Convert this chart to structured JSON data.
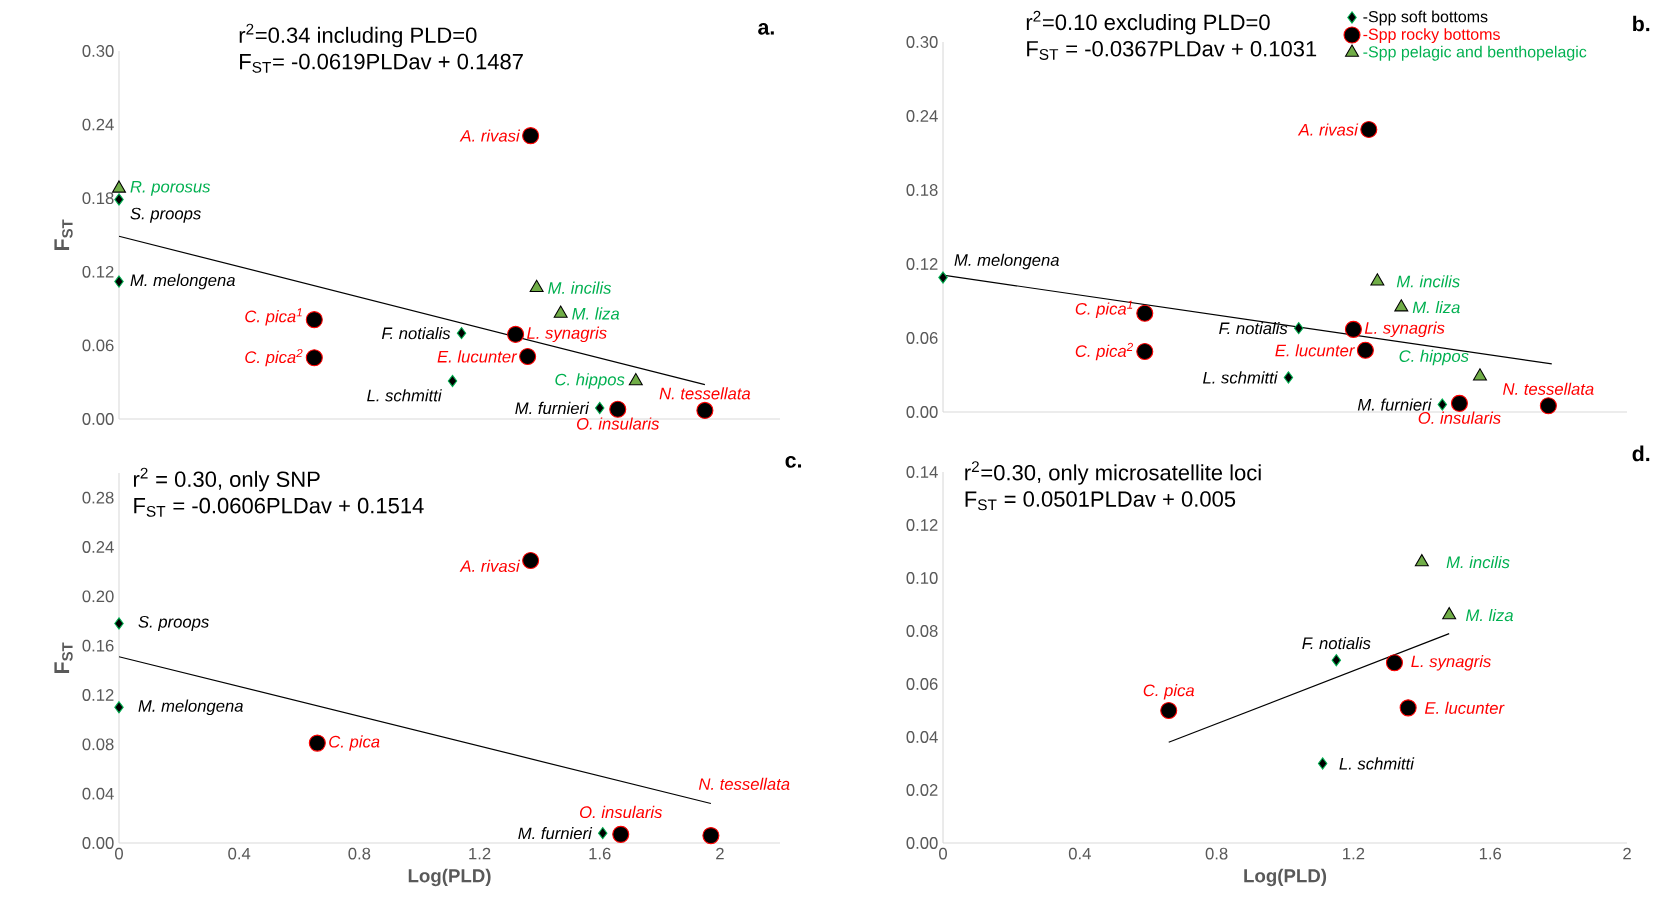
{
  "chart_data": [
    {
      "type": "scatter",
      "title": "a.",
      "ylabel": "F$_{ST}$",
      "annotations": [
        "r$^{2}$=0.34 including PLD=0",
        "F$_{ST}$= -0.0619PLDav + 0.1487",
        {
          "text": "S. proops",
          "x": 0,
          "y": 0.179
        },
        {
          "text": "M. melongena",
          "x": 0,
          "y": 0.112
        },
        {
          "text": "F. notialis",
          "x": 1.14,
          "y": 0.07
        },
        {
          "text": "L. schmitti",
          "x": 1.11,
          "y": 0.031
        },
        {
          "text": "M. furnieri",
          "x": 1.6,
          "y": 0.009
        },
        {
          "text": "C. pica$^{1}$",
          "x": 0.65,
          "y": 0.081
        },
        {
          "text": "C. pica$^{2}$",
          "x": 0.65,
          "y": 0.05
        },
        {
          "text": "A. rivasi",
          "x": 1.37,
          "y": 0.231
        },
        {
          "text": "L. synagris",
          "x": 1.32,
          "y": 0.069
        },
        {
          "text": "E. lucunter",
          "x": 1.36,
          "y": 0.051
        },
        {
          "text": "O. insularis",
          "x": 1.66,
          "y": 0.008
        },
        {
          "text": "N. tessellata",
          "x": 1.95,
          "y": 0.007
        },
        {
          "text": "R. porosus",
          "x": 0,
          "y": 0.188
        },
        {
          "text": "M. incilis",
          "x": 1.39,
          "y": 0.107
        },
        {
          "text": "M. liza",
          "x": 1.47,
          "y": 0.086
        },
        {
          "text": "C. hippos",
          "x": 1.72,
          "y": 0.031
        }
      ],
      "xlim": [
        0,
        2.2
      ],
      "ylim": [
        0,
        0.3
      ],
      "tick_labels": "y",
      "yticks": [
        {
          "value": 0,
          "label": "0.00"
        },
        {
          "value": 0.06,
          "label": "0.06"
        },
        {
          "value": 0.12,
          "label": "0.12"
        },
        {
          "value": 0.18,
          "label": "0.18"
        },
        {
          "value": 0.24,
          "label": "0.24"
        },
        {
          "value": 0.3,
          "label": "0.30"
        }
      ],
      "series": [
        {
          "marker": "diamond",
          "color": "#000000",
          "x": [
            0,
            0,
            1.14,
            1.11,
            1.6
          ],
          "values": [
            0.179,
            0.112,
            0.07,
            0.031,
            0.009
          ]
        },
        {
          "marker": "circle",
          "color": "#000000",
          "x": [
            0.65,
            0.65,
            1.37,
            1.32,
            1.36,
            1.66,
            1.95
          ],
          "values": [
            0.081,
            0.05,
            0.231,
            0.069,
            0.051,
            0.008,
            0.007
          ]
        },
        {
          "marker": "triangle",
          "color": "#70ad47",
          "x": [
            0,
            1.39,
            1.47,
            1.72
          ],
          "values": [
            0.188,
            0.107,
            0.086,
            0.031
          ]
        },
        {
          "type": "line",
          "marker": "none",
          "line_style": "solid",
          "color": "#000000",
          "x": [
            0,
            1.95
          ],
          "values": [
            0.149,
            0.028
          ]
        }
      ]
    },
    {
      "type": "scatter",
      "title": "b.",
      "annotations": [
        "r$^{2}$=0.10 excluding PLD=0",
        "F$_{ST}$ = -0.0367PLDav + 0.1031",
        {
          "text": "M. melongena",
          "x": 0,
          "y": 0.109
        },
        {
          "text": "F. notialis",
          "x": 1.04,
          "y": 0.068
        },
        {
          "text": "L. schmitti",
          "x": 1.01,
          "y": 0.028
        },
        {
          "text": "M. furnieri",
          "x": 1.46,
          "y": 0.006
        },
        {
          "text": "C. pica$^{1}$",
          "x": 0.59,
          "y": 0.08
        },
        {
          "text": "C. pica$^{2}$",
          "x": 0.59,
          "y": 0.049
        },
        {
          "text": "A. rivasi",
          "x": 1.245,
          "y": 0.229
        },
        {
          "text": "L. synagris",
          "x": 1.2,
          "y": 0.067
        },
        {
          "text": "E. lucunter",
          "x": 1.235,
          "y": 0.05
        },
        {
          "text": "O. insularis",
          "x": 1.51,
          "y": 0.007
        },
        {
          "text": "N. tessellata",
          "x": 1.77,
          "y": 0.005
        },
        {
          "text": "M. incilis",
          "x": 1.27,
          "y": 0.106
        },
        {
          "text": "M. liza",
          "x": 1.34,
          "y": 0.085
        },
        {
          "text": "C. hippos",
          "x": 1.57,
          "y": 0.029
        }
      ],
      "xlim": [
        0,
        2
      ],
      "ylim": [
        0,
        0.3
      ],
      "tick_labels": "y",
      "legend": "top right",
      "yticks": [
        {
          "value": 0,
          "label": "0.00"
        },
        {
          "value": 0.06,
          "label": "0.06"
        },
        {
          "value": 0.12,
          "label": "0.12"
        },
        {
          "value": 0.18,
          "label": "0.18"
        },
        {
          "value": 0.24,
          "label": "0.24"
        },
        {
          "value": 0.3,
          "label": "0.30"
        }
      ],
      "series": [
        {
          "name": "-Spp soft bottoms",
          "marker": "diamond",
          "color": "#000000",
          "x": [
            0,
            1.04,
            1.01,
            1.46
          ],
          "values": [
            0.109,
            0.068,
            0.028,
            0.006
          ]
        },
        {
          "name": "-Spp rocky bottoms",
          "marker": "circle",
          "color": "#000000",
          "x": [
            0.59,
            0.59,
            1.245,
            1.2,
            1.235,
            1.51,
            1.77
          ],
          "values": [
            0.08,
            0.049,
            0.229,
            0.067,
            0.05,
            0.007,
            0.005
          ]
        },
        {
          "name": "-Spp pelagic and benthopelagic",
          "marker": "triangle",
          "color": "#70ad47",
          "x": [
            1.27,
            1.34,
            1.57
          ],
          "values": [
            0.106,
            0.085,
            0.029
          ]
        },
        {
          "type": "line",
          "marker": "none",
          "line_style": "solid",
          "color": "#000000",
          "x": [
            0,
            1.78
          ],
          "values": [
            0.111,
            0.039
          ]
        }
      ]
    },
    {
      "type": "scatter",
      "title": "c.",
      "ylabel": "F$_{ST}$",
      "xlabel": "Log(PLD)",
      "annotations": [
        "r$^{2}$ = 0.30, only SNP",
        "F$_{ST}$ = -0.0606PLDav + 0.1514",
        {
          "text": "S. proops",
          "x": 0,
          "y": 0.178
        },
        {
          "text": "M. melongena",
          "x": 0,
          "y": 0.11
        },
        {
          "text": "M. furnieri",
          "x": 1.61,
          "y": 0.008
        },
        {
          "text": "C. pica",
          "x": 0.66,
          "y": 0.081
        },
        {
          "text": "A. rivasi",
          "x": 1.37,
          "y": 0.229
        },
        {
          "text": "O. insularis",
          "x": 1.67,
          "y": 0.007
        },
        {
          "text": "N. tessellata",
          "x": 1.97,
          "y": 0.006
        }
      ],
      "xlim": [
        0,
        2.2
      ],
      "ylim": [
        0,
        0.3
      ],
      "xticks": [
        0,
        0.4,
        0.8,
        1.2,
        1.6,
        2
      ],
      "yticks": [
        {
          "value": 0,
          "label": "0.00"
        },
        {
          "value": 0.04,
          "label": "0.04"
        },
        {
          "value": 0.08,
          "label": "0.08"
        },
        {
          "value": 0.12,
          "label": "0.12"
        },
        {
          "value": 0.16,
          "label": "0.16"
        },
        {
          "value": 0.2,
          "label": "0.20"
        },
        {
          "value": 0.24,
          "label": "0.24"
        },
        {
          "value": 0.28,
          "label": "0.28"
        }
      ],
      "series": [
        {
          "marker": "diamond",
          "color": "#000000",
          "x": [
            0,
            0,
            1.61
          ],
          "values": [
            0.178,
            0.11,
            0.008
          ]
        },
        {
          "marker": "circle",
          "color": "#000000",
          "x": [
            0.66,
            1.37,
            1.67,
            1.97
          ],
          "values": [
            0.081,
            0.229,
            0.007,
            0.006
          ]
        },
        {
          "type": "line",
          "marker": "none",
          "line_style": "solid",
          "color": "#000000",
          "x": [
            0,
            1.97
          ],
          "values": [
            0.151,
            0.032
          ]
        }
      ]
    },
    {
      "type": "scatter",
      "title": "d.",
      "xlabel": "Log(PLD)",
      "annotations": [
        "r$^{2}$=0.30, only microsatellite loci",
        "F$_{ST}$ = 0.0501PLDav + 0.005",
        {
          "text": "F. notialis",
          "x": 1.15,
          "y": 0.069
        },
        {
          "text": "L. schmitti",
          "x": 1.11,
          "y": 0.03
        },
        {
          "text": "C. pica",
          "x": 0.66,
          "y": 0.05
        },
        {
          "text": "L. synagris",
          "x": 1.32,
          "y": 0.068
        },
        {
          "text": "E. lucunter",
          "x": 1.36,
          "y": 0.051
        },
        {
          "text": "M. incilis",
          "x": 1.4,
          "y": 0.106
        },
        {
          "text": "M. liza",
          "x": 1.48,
          "y": 0.086
        }
      ],
      "xlim": [
        0,
        2
      ],
      "ylim": [
        0,
        0.14
      ],
      "xticks": [
        0,
        0.4,
        0.8,
        1.2,
        1.6,
        2
      ],
      "yticks": [
        {
          "value": 0,
          "label": "0.00"
        },
        {
          "value": 0.02,
          "label": "0.02"
        },
        {
          "value": 0.04,
          "label": "0.04"
        },
        {
          "value": 0.06,
          "label": "0.06"
        },
        {
          "value": 0.08,
          "label": "0.08"
        },
        {
          "value": 0.1,
          "label": "0.10"
        },
        {
          "value": 0.12,
          "label": "0.12"
        },
        {
          "value": 0.14,
          "label": "0.14"
        }
      ],
      "series": [
        {
          "marker": "diamond",
          "color": "#000000",
          "x": [
            1.15,
            1.11
          ],
          "values": [
            0.069,
            0.03
          ]
        },
        {
          "marker": "circle",
          "color": "#000000",
          "x": [
            0.66,
            1.32,
            1.36
          ],
          "values": [
            0.05,
            0.068,
            0.051
          ]
        },
        {
          "marker": "triangle",
          "color": "#70ad47",
          "x": [
            1.4,
            1.48
          ],
          "values": [
            0.106,
            0.086
          ]
        },
        {
          "type": "line",
          "marker": "none",
          "line_style": "solid",
          "color": "#000000",
          "x": [
            0.66,
            1.48
          ],
          "values": [
            0.038,
            0.079
          ]
        }
      ]
    }
  ]
}
